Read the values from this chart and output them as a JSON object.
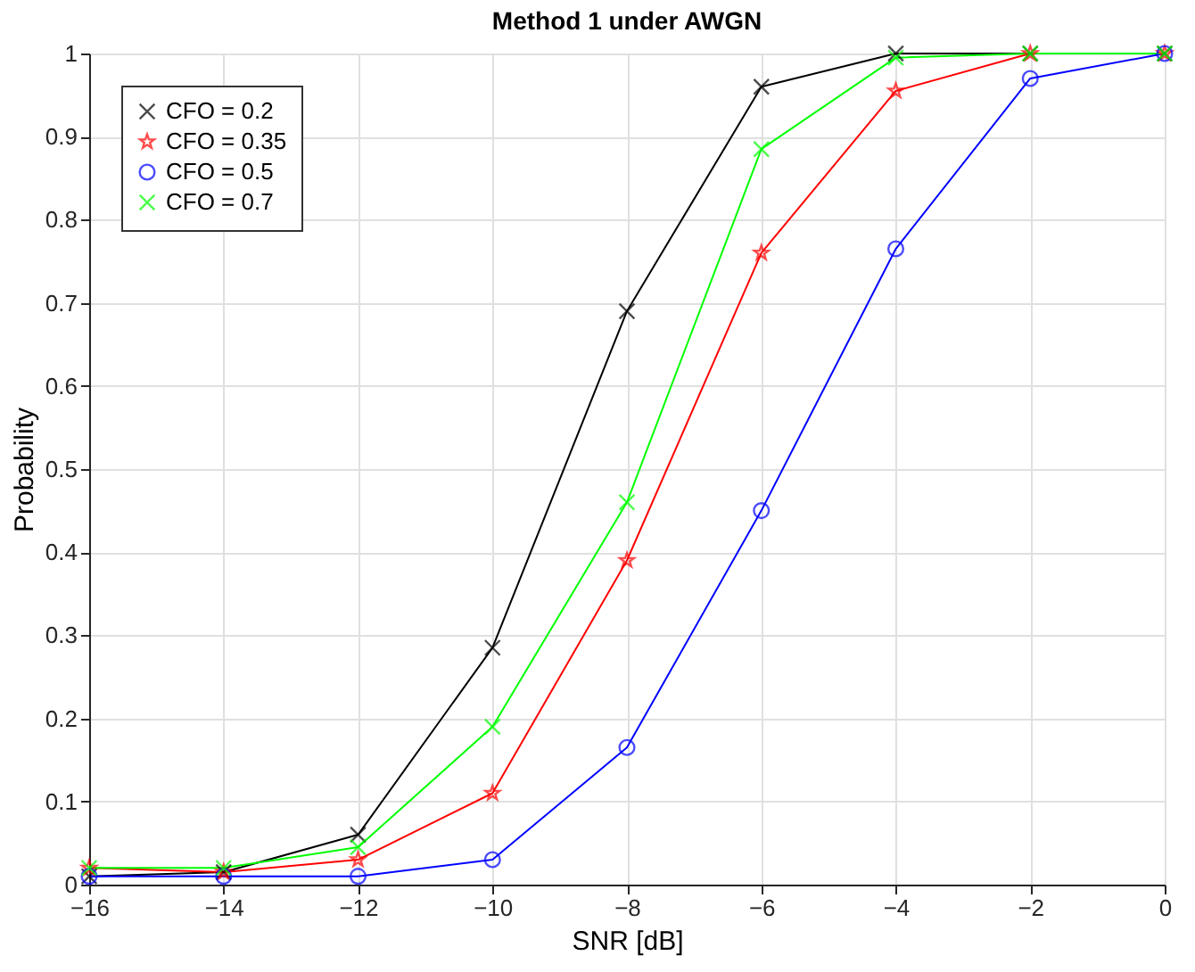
{
  "chart_data": {
    "type": "line",
    "title": "Method 1 under AWGN",
    "xlabel": "SNR [dB]",
    "ylabel": "Probability",
    "x": [
      -16,
      -14,
      -12,
      -10,
      -8,
      -6,
      -4,
      -2,
      0
    ],
    "series": [
      {
        "name": "CFO = 0.2",
        "color": "#000000",
        "marker": "cross",
        "values": [
          0.01,
          0.015,
          0.06,
          0.285,
          0.69,
          0.96,
          1,
          1,
          1
        ]
      },
      {
        "name": "CFO = 0.35",
        "color": "#ff0000",
        "marker": "star",
        "values": [
          0.02,
          0.015,
          0.03,
          0.11,
          0.39,
          0.76,
          0.955,
          1,
          1
        ]
      },
      {
        "name": "CFO = 0.5",
        "color": "#0000ff",
        "marker": "circle",
        "values": [
          0.01,
          0.01,
          0.01,
          0.03,
          0.165,
          0.45,
          0.765,
          0.97,
          1
        ]
      },
      {
        "name": "CFO = 0.7",
        "color": "#00ff00",
        "marker": "cross",
        "values": [
          0.02,
          0.02,
          0.045,
          0.19,
          0.46,
          0.885,
          0.995,
          1,
          1
        ]
      }
    ],
    "xlim": [
      -16,
      0
    ],
    "xticks": [
      -16,
      -14,
      -12,
      -10,
      -8,
      -6,
      -4,
      -2,
      0
    ],
    "ylim": [
      0,
      1
    ],
    "yticks": [
      0,
      0.1,
      0.2,
      0.3,
      0.4,
      0.5,
      0.6,
      0.7,
      0.8,
      0.9,
      1
    ],
    "grid": true,
    "legend": "top left",
    "line_style": "solid"
  }
}
